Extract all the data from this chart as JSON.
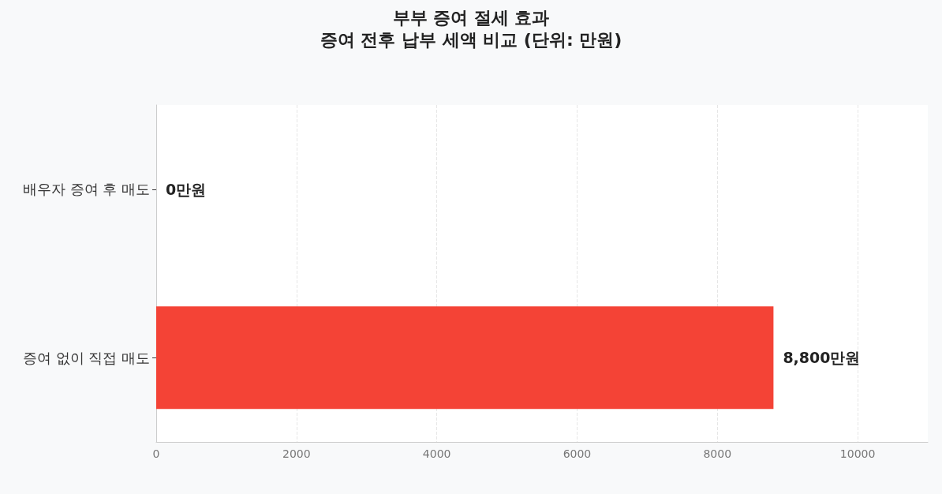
{
  "chart_data": {
    "type": "bar",
    "orientation": "horizontal",
    "title": "부부 증여 절세 효과",
    "subtitle": "증여 전후 납부 세액 비교 (단위: 만원)",
    "categories": [
      "배우자 증여 후 매도",
      "증여 없이 직접 매도"
    ],
    "values": [
      0,
      8800
    ],
    "colors": [
      "#f44336",
      "#f44336"
    ],
    "value_labels": [
      "0만원",
      "8,800만원"
    ],
    "xlim": [
      0,
      11000
    ],
    "xticks": [
      0,
      2000,
      4000,
      6000,
      8000,
      10000
    ],
    "grid": "x"
  }
}
